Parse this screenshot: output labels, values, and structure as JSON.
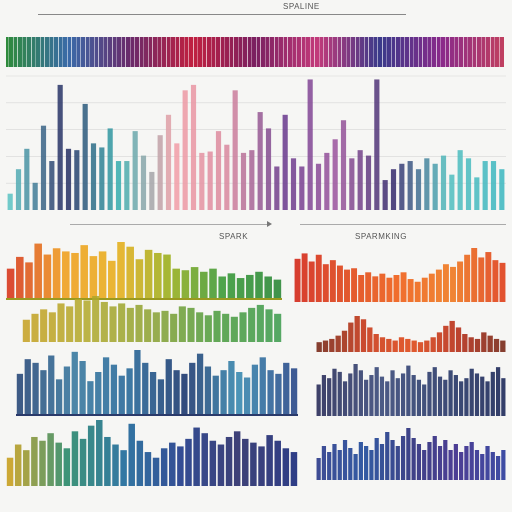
{
  "labels": {
    "top_title": "SPALINE",
    "middle_label": "SPARK",
    "right_label": "SPARMKING"
  },
  "chart_data": [
    {
      "type": "bar",
      "title": "SPALINE",
      "grid": true,
      "colors": [
        "#3fb3b3",
        "#2f2e66",
        "#e88a97",
        "#6b3a8c",
        "#5bc2c2"
      ],
      "values": [
        12,
        30,
        45,
        20,
        62,
        36,
        92,
        45,
        44,
        78,
        49,
        46,
        60,
        36,
        36,
        58,
        40,
        28,
        55,
        70,
        49,
        88,
        92,
        42,
        43,
        58,
        48,
        88,
        42,
        44,
        72,
        60,
        32,
        70,
        38,
        32,
        96,
        34,
        42,
        52,
        66,
        38,
        44,
        40,
        96,
        22,
        30,
        34,
        36,
        30,
        38,
        34,
        40,
        26,
        44,
        38,
        24,
        36,
        36,
        30
      ]
    },
    {
      "type": "bar",
      "title": "",
      "values": [
        40,
        55,
        48,
        72,
        58,
        66,
        62,
        60,
        70,
        56,
        62,
        50,
        74,
        68,
        52,
        64,
        60,
        58,
        40,
        38,
        42,
        36,
        40,
        30,
        34,
        28,
        32,
        36,
        30,
        26
      ]
    },
    {
      "type": "bar",
      "title": "",
      "values": [
        30,
        38,
        44,
        40,
        52,
        48,
        58,
        56,
        62,
        54,
        48,
        52,
        46,
        50,
        44,
        40,
        42,
        38,
        48,
        46,
        40,
        36,
        42,
        38,
        34,
        40,
        46,
        50,
        44,
        38
      ]
    },
    {
      "type": "bar",
      "title": "SPARMKING",
      "values": [
        64,
        72,
        60,
        70,
        56,
        62,
        54,
        48,
        50,
        40,
        44,
        38,
        42,
        36,
        40,
        44,
        34,
        30,
        36,
        42,
        48,
        56,
        52,
        60,
        70,
        80,
        66,
        74,
        62,
        58
      ]
    },
    {
      "type": "bar",
      "title": "",
      "values": [
        12,
        14,
        16,
        20,
        26,
        36,
        44,
        40,
        30,
        22,
        18,
        16,
        14,
        18,
        16,
        14,
        12,
        14,
        18,
        24,
        32,
        38,
        30,
        22,
        18,
        16,
        24,
        20,
        16,
        14
      ]
    },
    {
      "type": "bar",
      "title": "",
      "values": [
        46,
        62,
        58,
        50,
        66,
        40,
        54,
        70,
        60,
        38,
        48,
        64,
        56,
        44,
        52,
        72,
        58,
        48,
        40,
        62,
        50,
        46,
        58,
        68,
        54,
        44,
        50,
        60,
        48,
        42,
        56,
        64,
        50,
        46,
        58,
        52
      ]
    },
    {
      "type": "bar",
      "title": "",
      "values": [
        40,
        52,
        48,
        60,
        56,
        44,
        54,
        66,
        58,
        46,
        52,
        62,
        50,
        44,
        58,
        48,
        54,
        64,
        52,
        46,
        40,
        56,
        62,
        50,
        46,
        58,
        52,
        44,
        48,
        60,
        54,
        50,
        44,
        56,
        62,
        48
      ]
    },
    {
      "type": "bar",
      "title": "",
      "values": [
        30,
        44,
        38,
        52,
        48,
        56,
        46,
        40,
        58,
        50,
        64,
        70,
        52,
        44,
        38,
        66,
        48,
        36,
        30,
        40,
        46,
        42,
        50,
        62,
        56,
        48,
        44,
        52,
        58,
        50,
        46,
        42,
        54,
        48,
        40,
        36
      ]
    },
    {
      "type": "bar",
      "title": "",
      "values": [
        22,
        34,
        28,
        36,
        30,
        40,
        32,
        26,
        38,
        34,
        30,
        42,
        36,
        48,
        40,
        34,
        44,
        52,
        42,
        36,
        30,
        38,
        44,
        34,
        40,
        30,
        36,
        28,
        34,
        38,
        30,
        26,
        34,
        28,
        24,
        30
      ]
    }
  ]
}
